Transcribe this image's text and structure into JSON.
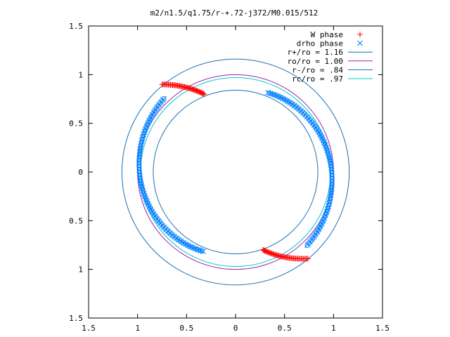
{
  "chart_data": {
    "type": "scatter",
    "title": "m2/n1.5/q1.75/r-+.72-j372/M0.015/512",
    "xlabel": "",
    "ylabel": "",
    "xlim": [
      -1.5,
      1.5
    ],
    "ylim": [
      -1.5,
      1.5
    ],
    "x_ticks": [
      "1.5",
      "1",
      "0.5",
      "0",
      "0.5",
      "1",
      "1.5"
    ],
    "y_ticks": [
      "1.5",
      "1",
      "0.5",
      "0",
      "0.5",
      "1",
      "1.5"
    ],
    "x_tick_values": [
      -1.5,
      -1,
      -0.5,
      0,
      0.5,
      1,
      1.5
    ],
    "y_tick_values": [
      1.5,
      1,
      0.5,
      0,
      -0.5,
      -1,
      -1.5
    ],
    "grid": false,
    "legend_position": "top-right",
    "legend": [
      {
        "label": "W phase",
        "marker": "plus",
        "color": "#ff0000"
      },
      {
        "label": "drho phase",
        "marker": "x",
        "color": "#0080ff"
      },
      {
        "label": "r+/ro = 1.16",
        "marker": "line",
        "color": "#1a6fb5"
      },
      {
        "label": "ro/ro = 1.00",
        "marker": "line",
        "color": "#a020a0"
      },
      {
        "label": "r-/ro = .84",
        "marker": "line",
        "color": "#1a6fb5"
      },
      {
        "label": "rc/ro = .97",
        "marker": "line",
        "color": "#00c8c8"
      }
    ],
    "circles": [
      {
        "name": "r+/ro",
        "r": 1.16,
        "color": "#1a6fb5"
      },
      {
        "name": "ro/ro",
        "r": 1.0,
        "color": "#a020a0"
      },
      {
        "name": "r-/ro",
        "r": 0.84,
        "color": "#1a6fb5"
      },
      {
        "name": "rc/ro",
        "r": 0.97,
        "color": "#00c8c8"
      }
    ],
    "series": [
      {
        "name": "W phase",
        "marker": "plus",
        "color": "#ff0000",
        "arcs": [
          {
            "start": [
              -0.75,
              0.9
            ],
            "end": [
              -0.32,
              0.8
            ],
            "n": 45
          },
          {
            "start": [
              0.28,
              -0.8
            ],
            "end": [
              0.74,
              -0.89
            ],
            "n": 45
          }
        ]
      },
      {
        "name": "drho phase",
        "marker": "x",
        "color": "#0080ff",
        "arcs": [
          {
            "r_start": 0.88,
            "r_end": 1.05,
            "a_start": 68,
            "a_end": -46,
            "n": 130,
            "alt_marker": "square"
          },
          {
            "r_start": 0.88,
            "r_end": 1.05,
            "a_start": 248,
            "a_end": 134,
            "n": 130,
            "alt_marker": "square"
          }
        ]
      }
    ]
  }
}
